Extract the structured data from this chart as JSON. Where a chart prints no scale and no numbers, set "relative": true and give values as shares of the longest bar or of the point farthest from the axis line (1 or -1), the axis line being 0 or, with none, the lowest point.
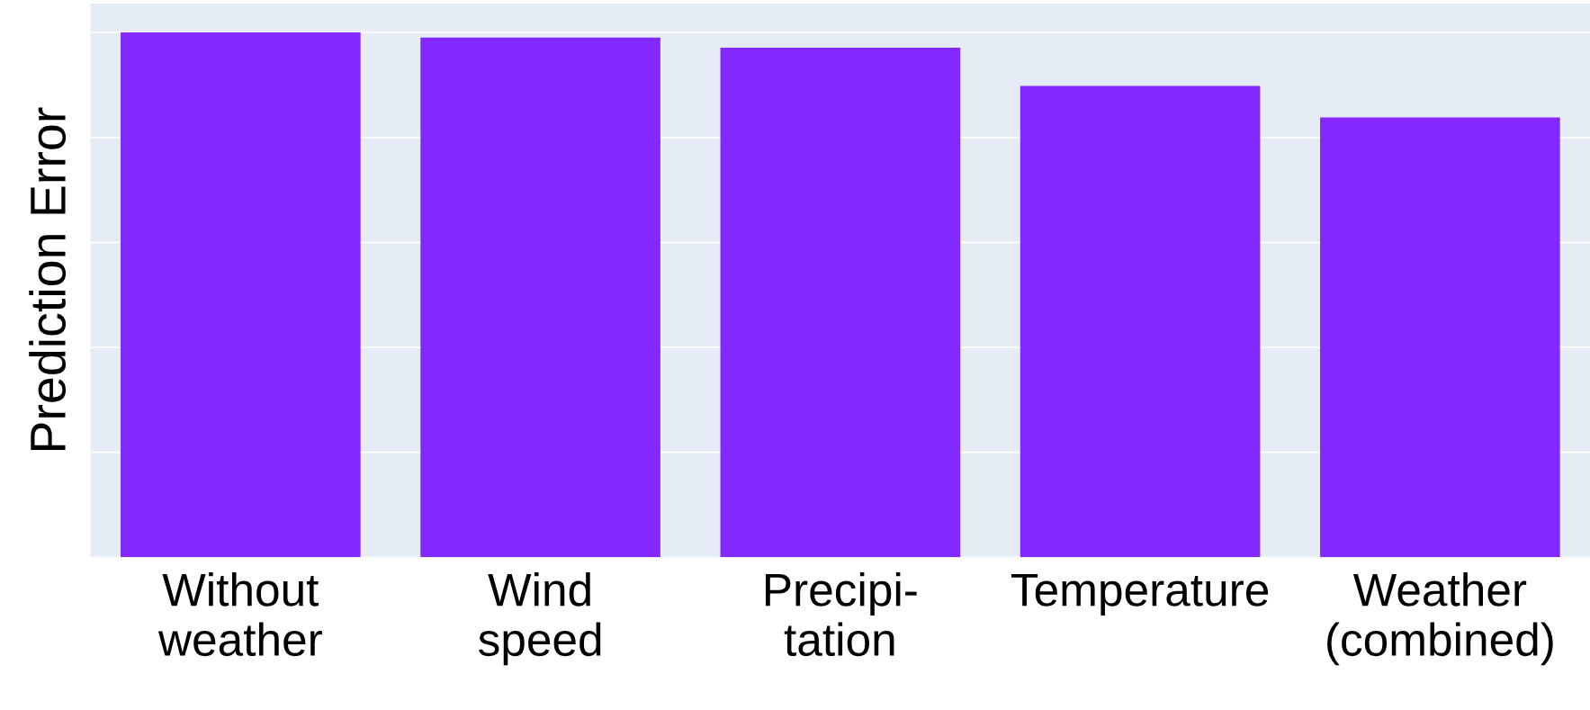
{
  "chart_data": {
    "type": "bar",
    "relative": true,
    "ylabel": "Prediction Error",
    "categories": [
      "Without\nweather",
      "Wind\nspeed",
      "Precipi-\ntation",
      "Temperature",
      "Weather\n(combined)"
    ],
    "values": [
      1,
      0.99,
      0.971,
      0.898,
      0.838
    ],
    "color": "#8328ff",
    "grid": "y",
    "legend": false
  }
}
